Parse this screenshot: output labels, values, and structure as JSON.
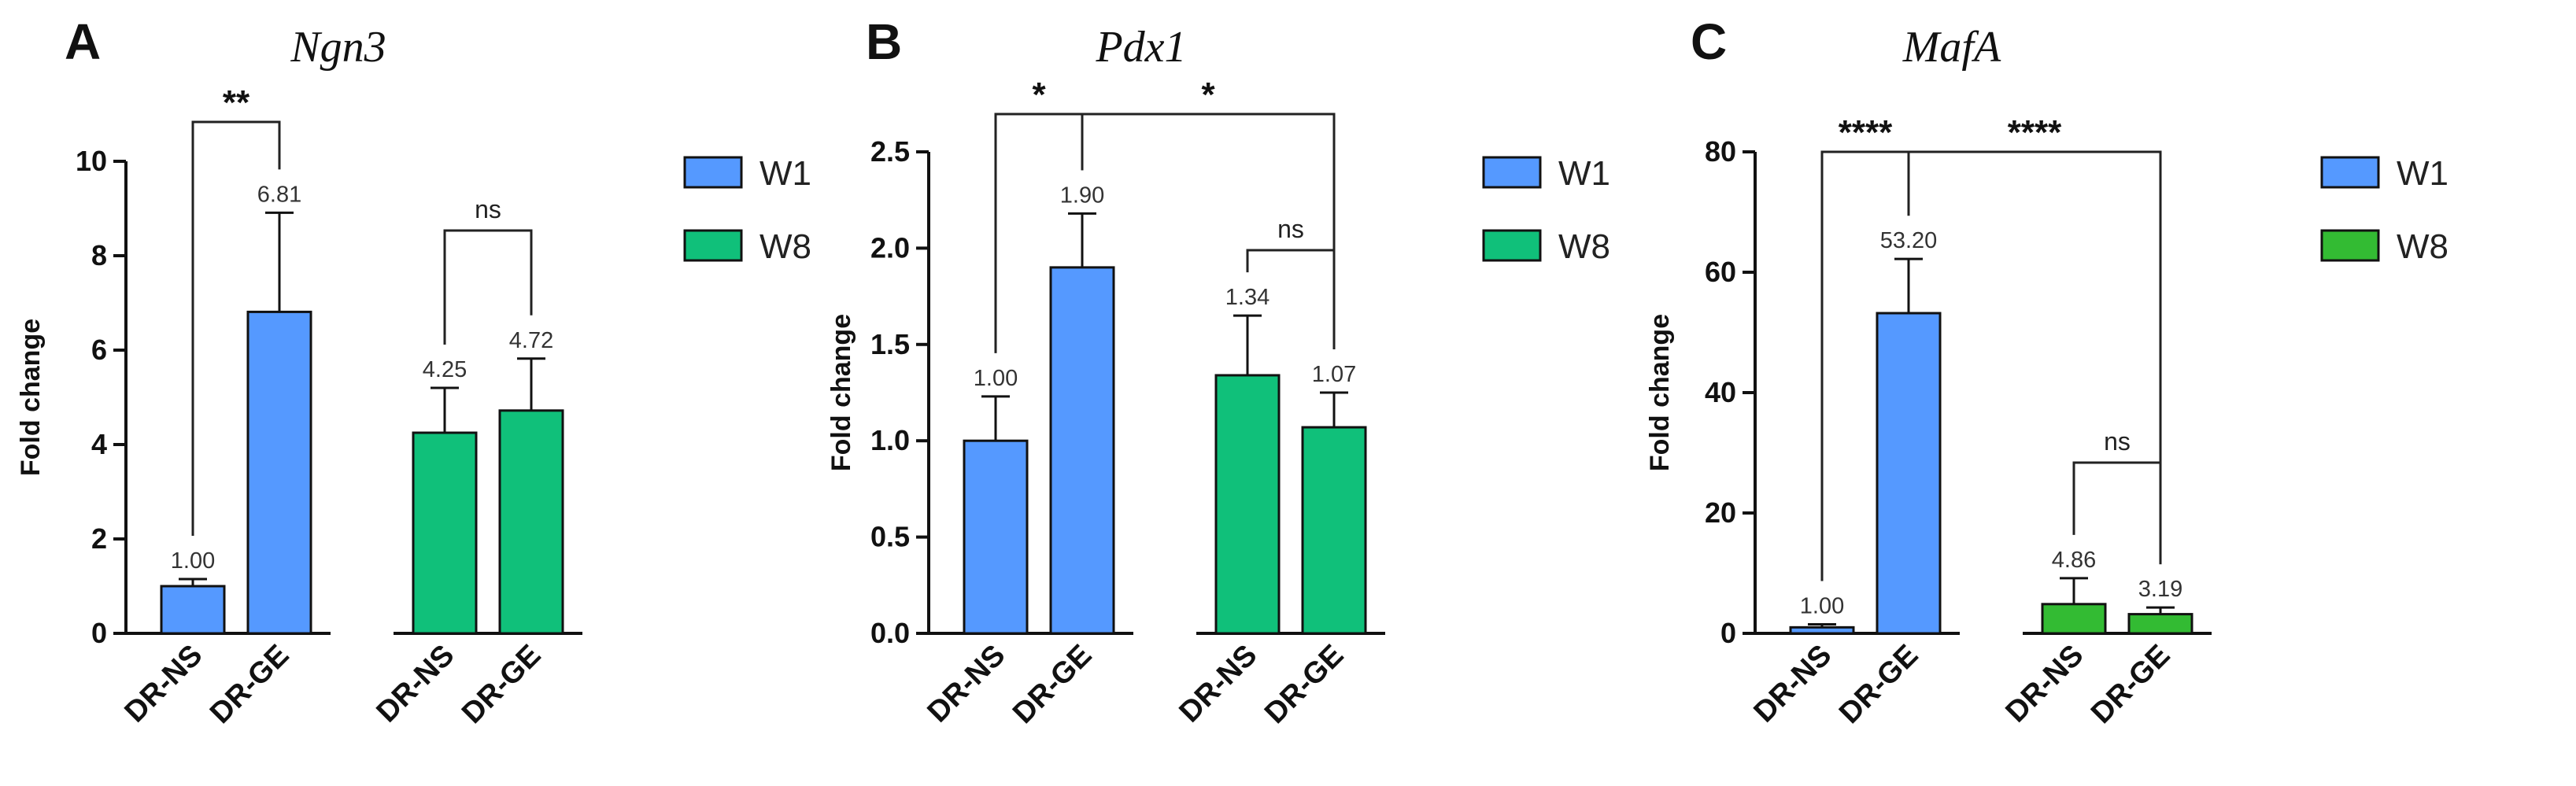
{
  "colors": {
    "w1": "#5599ff",
    "w8": "#10c07a",
    "w8_mafa": "#33bb33",
    "axis": "#111111"
  },
  "chart_data": [
    {
      "type": "bar",
      "panel": "A",
      "title": "Ngn3",
      "ylabel": "Fold change",
      "ylim": [
        0,
        10
      ],
      "yticks": [
        "0",
        "2",
        "4",
        "6",
        "8",
        "10"
      ],
      "categories": [
        "DR-NS",
        "DR-GE",
        "DR-NS",
        "DR-GE"
      ],
      "groups": [
        "W1",
        "W1",
        "W8",
        "W8"
      ],
      "values": [
        1.0,
        6.81,
        4.25,
        4.72
      ],
      "errors": [
        0.15,
        2.1,
        0.95,
        1.1
      ],
      "value_labels": [
        "1.00",
        "6.81",
        "4.25",
        "4.72"
      ],
      "legend": [
        "W1",
        "W8"
      ],
      "significance": [
        {
          "label": "**",
          "between": [
            0,
            1
          ]
        },
        {
          "label": "ns",
          "between": [
            2,
            3
          ]
        }
      ]
    },
    {
      "type": "bar",
      "panel": "B",
      "title": "Pdx1",
      "ylabel": "Fold change",
      "ylim": [
        0,
        2.5
      ],
      "yticks": [
        "0.0",
        "0.5",
        "1.0",
        "1.5",
        "2.0",
        "2.5"
      ],
      "categories": [
        "DR-NS",
        "DR-GE",
        "DR-NS",
        "DR-GE"
      ],
      "groups": [
        "W1",
        "W1",
        "W8",
        "W8"
      ],
      "values": [
        1.0,
        1.9,
        1.34,
        1.07
      ],
      "errors": [
        0.23,
        0.28,
        0.31,
        0.18
      ],
      "value_labels": [
        "1.00",
        "1.90",
        "1.34",
        "1.07"
      ],
      "legend": [
        "W1",
        "W8"
      ],
      "significance": [
        {
          "label": "*",
          "between": [
            0,
            1
          ]
        },
        {
          "label": "*",
          "between": [
            1,
            3
          ]
        },
        {
          "label": "ns",
          "between": [
            2,
            3
          ]
        }
      ]
    },
    {
      "type": "bar",
      "panel": "C",
      "title": "MafA",
      "ylabel": "Fold change",
      "ylim": [
        0,
        80
      ],
      "yticks": [
        "0",
        "20",
        "40",
        "60",
        "80"
      ],
      "categories": [
        "DR-NS",
        "DR-GE",
        "DR-NS",
        "DR-GE"
      ],
      "groups": [
        "W1",
        "W1",
        "W8",
        "W8"
      ],
      "values": [
        1.0,
        53.2,
        4.86,
        3.19
      ],
      "errors": [
        0.5,
        9.0,
        4.3,
        1.1
      ],
      "value_labels": [
        "1.00",
        "53.20",
        "4.86",
        "3.19"
      ],
      "legend": [
        "W1",
        "W8"
      ],
      "significance": [
        {
          "label": "****",
          "between": [
            0,
            1
          ]
        },
        {
          "label": "****",
          "between": [
            1,
            3
          ]
        },
        {
          "label": "ns",
          "between": [
            2,
            3
          ]
        }
      ]
    }
  ]
}
